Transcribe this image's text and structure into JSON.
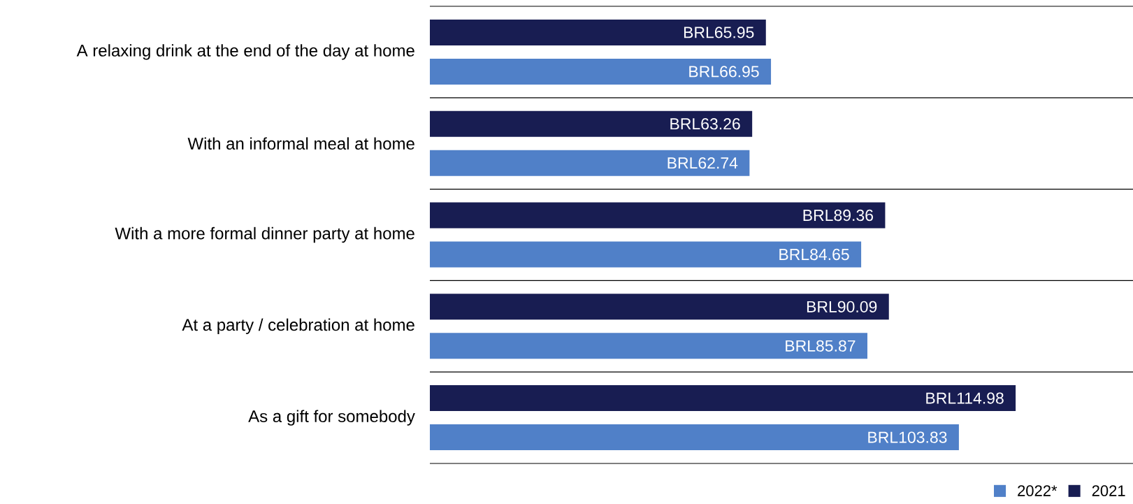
{
  "chart_data": {
    "type": "bar",
    "orientation": "horizontal",
    "categories": [
      "A relaxing drink at the end of the day at home",
      "With an informal meal at home",
      "With a more formal dinner party at home",
      "At a party / celebration at home",
      "As a gift for somebody"
    ],
    "series": [
      {
        "name": "2022*",
        "color": "#5080c8",
        "values": [
          66.95,
          62.74,
          84.65,
          85.87,
          103.83
        ],
        "value_labels": [
          "BRL66.95",
          "BRL62.74",
          "BRL84.65",
          "BRL85.87",
          "BRL103.83"
        ]
      },
      {
        "name": "2021",
        "color": "#181d52",
        "values": [
          65.95,
          63.26,
          89.36,
          90.09,
          114.98
        ],
        "value_labels": [
          "BRL65.95",
          "BRL63.26",
          "BRL89.36",
          "BRL90.09",
          "BRL114.98"
        ]
      }
    ],
    "xlim": [
      0,
      138
    ],
    "grid": "y",
    "legend": "bottom right",
    "tick_labels": "y"
  }
}
